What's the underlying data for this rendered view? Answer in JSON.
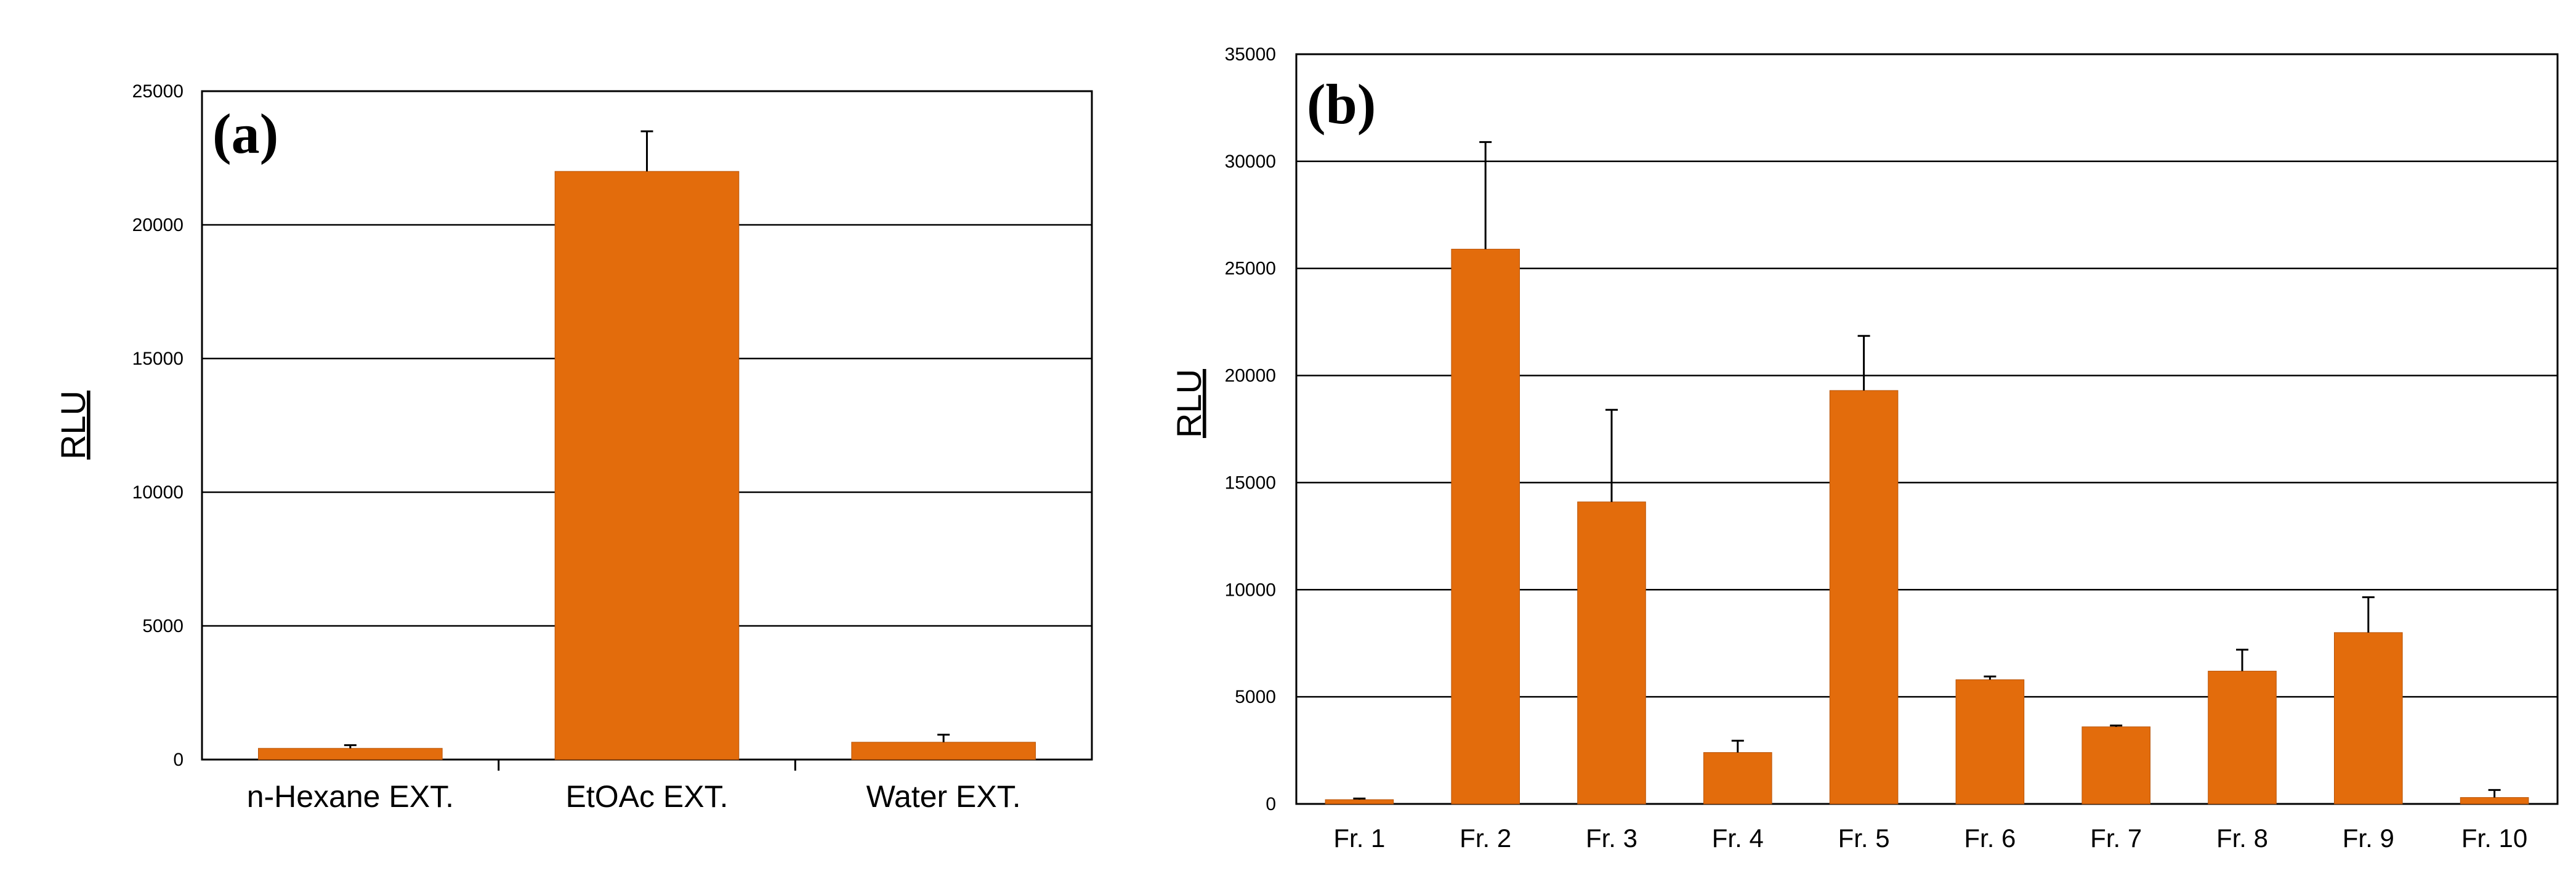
{
  "chart_data": [
    {
      "panel": "(a)",
      "type": "bar",
      "title": "",
      "xlabel": "",
      "ylabel": "RLU",
      "ylim": [
        0,
        25000
      ],
      "yticks": [
        0,
        5000,
        10000,
        15000,
        20000,
        25000
      ],
      "grid": true,
      "categories": [
        "n-Hexane EXT.",
        "EtOAc EXT.",
        "Water EXT."
      ],
      "values": [
        420,
        22000,
        650
      ],
      "errors": [
        120,
        1500,
        280
      ],
      "bar_color": "#e36c0c"
    },
    {
      "panel": "(b)",
      "type": "bar",
      "title": "",
      "xlabel": "",
      "ylabel": "RLU",
      "ylim": [
        0,
        35000
      ],
      "yticks": [
        0,
        5000,
        10000,
        15000,
        20000,
        25000,
        30000,
        35000
      ],
      "grid": true,
      "categories": [
        "Fr. 1",
        "Fr. 2",
        "Fr. 3",
        "Fr. 4",
        "Fr. 5",
        "Fr. 6",
        "Fr. 7",
        "Fr. 8",
        "Fr. 9",
        "Fr. 10"
      ],
      "values": [
        200,
        25900,
        14100,
        2400,
        19300,
        5800,
        3600,
        6200,
        8000,
        300
      ],
      "errors": [
        50,
        5000,
        4300,
        550,
        2550,
        150,
        60,
        1000,
        1650,
        350
      ],
      "bar_color": "#e36c0c"
    }
  ]
}
